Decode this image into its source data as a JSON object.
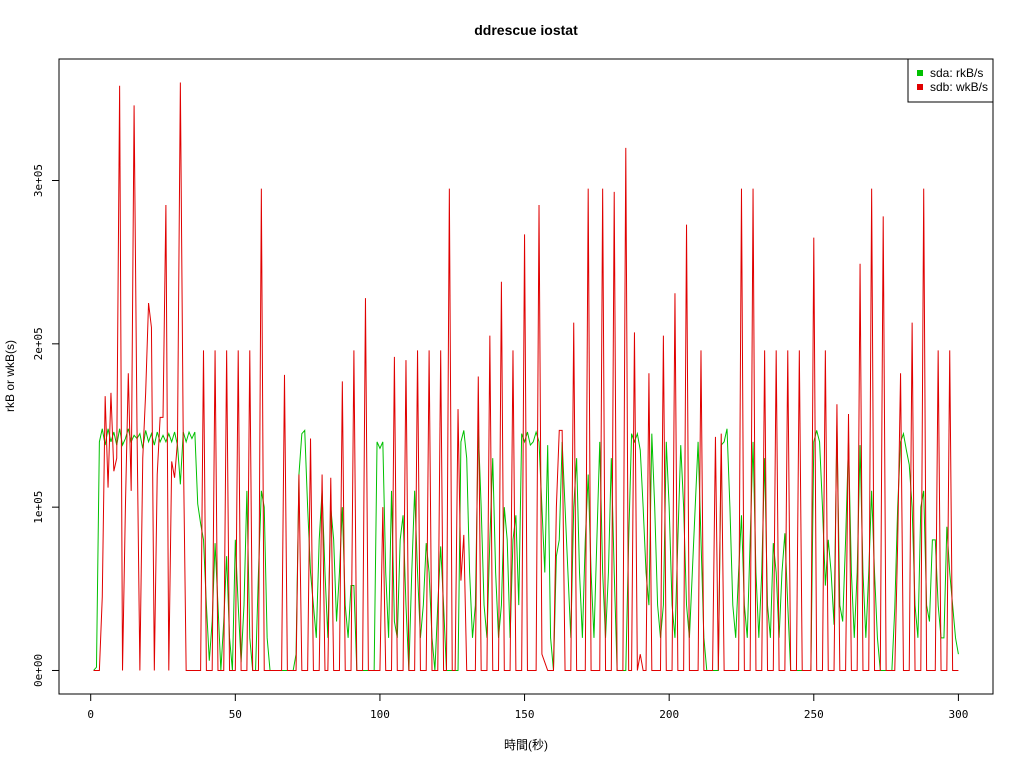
{
  "chart_data": {
    "type": "line",
    "title": "ddrescue iostat",
    "xlabel": "時間(秒)",
    "ylabel": "rkB or wkB(s)",
    "xlim": [
      -10.96,
      311.96
    ],
    "ylim": [
      -14400,
      374400
    ],
    "xticks": [
      0,
      50,
      100,
      150,
      200,
      250,
      300
    ],
    "yticks": [
      {
        "value": 0,
        "label": "0e+00"
      },
      {
        "value": 100000,
        "label": "1e+05"
      },
      {
        "value": 200000,
        "label": "2e+05"
      },
      {
        "value": 300000,
        "label": "3e+05"
      }
    ],
    "legend": "topright",
    "x": [
      1,
      2,
      3,
      4,
      5,
      6,
      7,
      8,
      9,
      10,
      11,
      12,
      13,
      14,
      15,
      16,
      17,
      18,
      19,
      20,
      21,
      22,
      23,
      24,
      25,
      26,
      27,
      28,
      29,
      30,
      31,
      32,
      33,
      34,
      35,
      36,
      37,
      38,
      39,
      40,
      41,
      42,
      43,
      44,
      45,
      46,
      47,
      48,
      49,
      50,
      51,
      52,
      53,
      54,
      55,
      56,
      57,
      58,
      59,
      60,
      61,
      62,
      63,
      64,
      65,
      66,
      67,
      68,
      69,
      70,
      71,
      72,
      73,
      74,
      75,
      76,
      77,
      78,
      79,
      80,
      81,
      82,
      83,
      84,
      85,
      86,
      87,
      88,
      89,
      90,
      91,
      92,
      93,
      94,
      95,
      96,
      97,
      98,
      99,
      100,
      101,
      102,
      103,
      104,
      105,
      106,
      107,
      108,
      109,
      110,
      111,
      112,
      113,
      114,
      115,
      116,
      117,
      118,
      119,
      120,
      121,
      122,
      123,
      124,
      125,
      126,
      127,
      128,
      129,
      130,
      131,
      132,
      133,
      134,
      135,
      136,
      137,
      138,
      139,
      140,
      141,
      142,
      143,
      144,
      145,
      146,
      147,
      148,
      149,
      150,
      151,
      152,
      153,
      154,
      155,
      156,
      157,
      158,
      159,
      160,
      161,
      162,
      163,
      164,
      165,
      166,
      167,
      168,
      169,
      170,
      171,
      172,
      173,
      174,
      175,
      176,
      177,
      178,
      179,
      180,
      181,
      182,
      183,
      184,
      185,
      186,
      187,
      188,
      189,
      190,
      191,
      192,
      193,
      194,
      195,
      196,
      197,
      198,
      199,
      200,
      201,
      202,
      203,
      204,
      205,
      206,
      207,
      208,
      209,
      210,
      211,
      212,
      213,
      214,
      215,
      216,
      217,
      218,
      219,
      220,
      221,
      222,
      223,
      224,
      225,
      226,
      227,
      228,
      229,
      230,
      231,
      232,
      233,
      234,
      235,
      236,
      237,
      238,
      239,
      240,
      241,
      242,
      243,
      244,
      245,
      246,
      247,
      248,
      249,
      250,
      251,
      252,
      253,
      254,
      255,
      256,
      257,
      258,
      259,
      260,
      261,
      262,
      263,
      264,
      265,
      266,
      267,
      268,
      269,
      270,
      271,
      272,
      273,
      274,
      275,
      276,
      277,
      278,
      279,
      280,
      281,
      282,
      283,
      284,
      285,
      286,
      287,
      288,
      289,
      290,
      291,
      292,
      293,
      294,
      295,
      296,
      297,
      298,
      299,
      300
    ],
    "series": [
      {
        "name": "sda: rkB/s",
        "color": "#00c000",
        "values": [
          0,
          2000,
          140000,
          148000,
          138000,
          148000,
          140000,
          146000,
          138000,
          148000,
          138000,
          142000,
          148000,
          140000,
          144000,
          142000,
          145000,
          136000,
          147000,
          140000,
          145000,
          138000,
          146000,
          140000,
          144000,
          140000,
          145000,
          140000,
          146000,
          138000,
          114000,
          146000,
          140000,
          146000,
          142000,
          146000,
          102000,
          90000,
          80000,
          40000,
          6000,
          30000,
          78000,
          40000,
          0,
          30000,
          70000,
          20000,
          0,
          80000,
          40000,
          5000,
          40000,
          110000,
          20000,
          0,
          0,
          60000,
          110000,
          100000,
          20000,
          0,
          0,
          0,
          0,
          0,
          0,
          0,
          0,
          0,
          10000,
          120000,
          145000,
          147000,
          100000,
          60000,
          40000,
          20000,
          80000,
          110000,
          60000,
          20000,
          100000,
          80000,
          30000,
          60000,
          100000,
          40000,
          20000,
          52000,
          52000,
          0,
          0,
          0,
          0,
          0,
          0,
          0,
          140000,
          136000,
          140000,
          60000,
          20000,
          110000,
          30000,
          20000,
          80000,
          95000,
          40000,
          0,
          60000,
          110000,
          60000,
          20000,
          40000,
          78000,
          60000,
          20000,
          0,
          40000,
          76000,
          40000,
          0,
          0,
          0,
          0,
          0,
          140000,
          147000,
          130000,
          60000,
          20000,
          40000,
          148000,
          100000,
          40000,
          20000,
          80000,
          130000,
          60000,
          20000,
          40000,
          100000,
          80000,
          20000,
          80000,
          95000,
          40000,
          145000,
          140000,
          146000,
          138000,
          140000,
          146000,
          140000,
          100000,
          60000,
          138000,
          20000,
          0,
          70000,
          80000,
          140000,
          100000,
          60000,
          20000,
          100000,
          130000,
          60000,
          20000,
          80000,
          120000,
          60000,
          20000,
          80000,
          140000,
          60000,
          20000,
          60000,
          130000,
          60000,
          0,
          0,
          0,
          0,
          80000,
          145000,
          140000,
          145000,
          135000,
          100000,
          60000,
          40000,
          145000,
          100000,
          40000,
          20000,
          40000,
          140000,
          100000,
          40000,
          20000,
          80000,
          138000,
          100000,
          40000,
          20000,
          60000,
          100000,
          140000,
          80000,
          20000,
          0,
          0,
          0,
          0,
          0,
          138000,
          140000,
          148000,
          100000,
          40000,
          20000,
          60000,
          95000,
          40000,
          20000,
          80000,
          140000,
          60000,
          20000,
          60000,
          130000,
          40000,
          20000,
          78000,
          60000,
          20000,
          60000,
          84000,
          40000,
          0,
          0,
          0,
          0,
          0,
          0,
          0,
          0,
          140000,
          147000,
          140000,
          100000,
          52000,
          80000,
          60000,
          28000,
          150000,
          40000,
          30000,
          80000,
          140000,
          60000,
          20000,
          60000,
          138000,
          60000,
          20000,
          60000,
          110000,
          60000,
          20000,
          0,
          0,
          0,
          0,
          0,
          38000,
          100000,
          140000,
          145000,
          135000,
          126000,
          100000,
          40000,
          20000,
          100000,
          110000,
          40000,
          30000,
          80000,
          80000,
          40000,
          20000,
          20000,
          88000,
          60000,
          40000,
          20000,
          10000
        ]
      },
      {
        "name": "sdb: wkB/s",
        "color": "#e00000",
        "values": [
          0,
          0,
          0,
          45000,
          168000,
          112000,
          170000,
          122000,
          130000,
          358000,
          0,
          100000,
          182000,
          110000,
          346000,
          150000,
          0,
          130000,
          170000,
          225000,
          210000,
          0,
          120000,
          155000,
          155000,
          285000,
          0,
          128000,
          118000,
          140000,
          360000,
          140000,
          0,
          0,
          0,
          0,
          0,
          0,
          196000,
          0,
          0,
          0,
          196000,
          0,
          0,
          0,
          196000,
          0,
          0,
          0,
          196000,
          0,
          0,
          0,
          196000,
          0,
          0,
          0,
          295000,
          0,
          0,
          0,
          0,
          0,
          0,
          0,
          181000,
          0,
          0,
          0,
          0,
          120000,
          0,
          0,
          0,
          142000,
          0,
          0,
          0,
          120000,
          0,
          0,
          118000,
          0,
          0,
          0,
          177000,
          0,
          0,
          0,
          196000,
          0,
          0,
          0,
          228000,
          0,
          0,
          0,
          0,
          0,
          100000,
          0,
          0,
          0,
          192000,
          0,
          0,
          0,
          190000,
          0,
          0,
          0,
          196000,
          0,
          0,
          0,
          196000,
          0,
          0,
          0,
          196000,
          0,
          0,
          295000,
          0,
          0,
          160000,
          55000,
          83000,
          0,
          0,
          0,
          0,
          180000,
          0,
          0,
          0,
          205000,
          0,
          0,
          0,
          238000,
          0,
          0,
          0,
          196000,
          0,
          0,
          0,
          267000,
          0,
          0,
          0,
          0,
          285000,
          10000,
          5000,
          0,
          0,
          0,
          100000,
          147000,
          147000,
          0,
          0,
          0,
          213000,
          0,
          0,
          0,
          0,
          295000,
          0,
          0,
          0,
          0,
          295000,
          0,
          0,
          0,
          293000,
          0,
          0,
          0,
          320000,
          0,
          0,
          207000,
          0,
          10000,
          0,
          0,
          182000,
          0,
          0,
          0,
          0,
          205000,
          0,
          0,
          0,
          231000,
          0,
          0,
          0,
          273000,
          0,
          0,
          0,
          0,
          196000,
          0,
          0,
          0,
          0,
          143000,
          0,
          145000,
          0,
          0,
          0,
          0,
          0,
          0,
          295000,
          0,
          0,
          0,
          295000,
          0,
          0,
          0,
          196000,
          0,
          0,
          0,
          196000,
          0,
          0,
          0,
          196000,
          0,
          0,
          0,
          196000,
          0,
          0,
          0,
          0,
          265000,
          0,
          0,
          0,
          196000,
          0,
          0,
          0,
          163000,
          0,
          0,
          0,
          157000,
          0,
          0,
          0,
          249000,
          0,
          0,
          0,
          295000,
          0,
          0,
          0,
          278000,
          0,
          0,
          0,
          0,
          78000,
          182000,
          0,
          0,
          0,
          213000,
          0,
          0,
          0,
          295000,
          0,
          0,
          0,
          0,
          196000,
          0,
          0,
          0,
          196000,
          0,
          0,
          0
        ]
      }
    ]
  }
}
